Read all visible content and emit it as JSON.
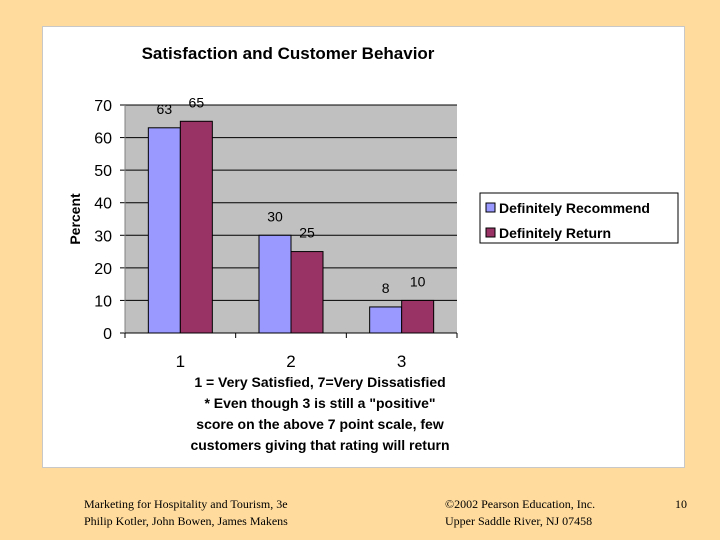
{
  "chart_data": {
    "type": "bar",
    "title": "Satisfaction and Customer Behavior",
    "ylabel": "Percent",
    "categories": [
      "1",
      "2",
      "3"
    ],
    "series": [
      {
        "name": "Definitely Recommend",
        "values": [
          63,
          30,
          8
        ],
        "color": "#9999FF"
      },
      {
        "name": "Definitely Return",
        "values": [
          65,
          25,
          10
        ],
        "color": "#993366"
      }
    ],
    "ylim": [
      0,
      70
    ],
    "yticks": [
      0,
      10,
      20,
      30,
      40,
      50,
      60,
      70
    ],
    "plot_background": "#C0C0C0",
    "legend_position": "right",
    "data_labels": true,
    "notes": [
      "1 = Very Satisfied, 7=Very Dissatisfied",
      "* Even though 3 is still a \"positive\"",
      "score on the above 7 point scale, few",
      "customers giving that rating will return"
    ]
  },
  "footer": {
    "left_line1": "Marketing for Hospitality and Tourism, 3e",
    "left_line2": "Philip Kotler, John Bowen, James Makens",
    "center_line1": "©2002 Pearson Education, Inc.",
    "center_line2": "Upper Saddle River, NJ 07458",
    "page_number": "10"
  }
}
